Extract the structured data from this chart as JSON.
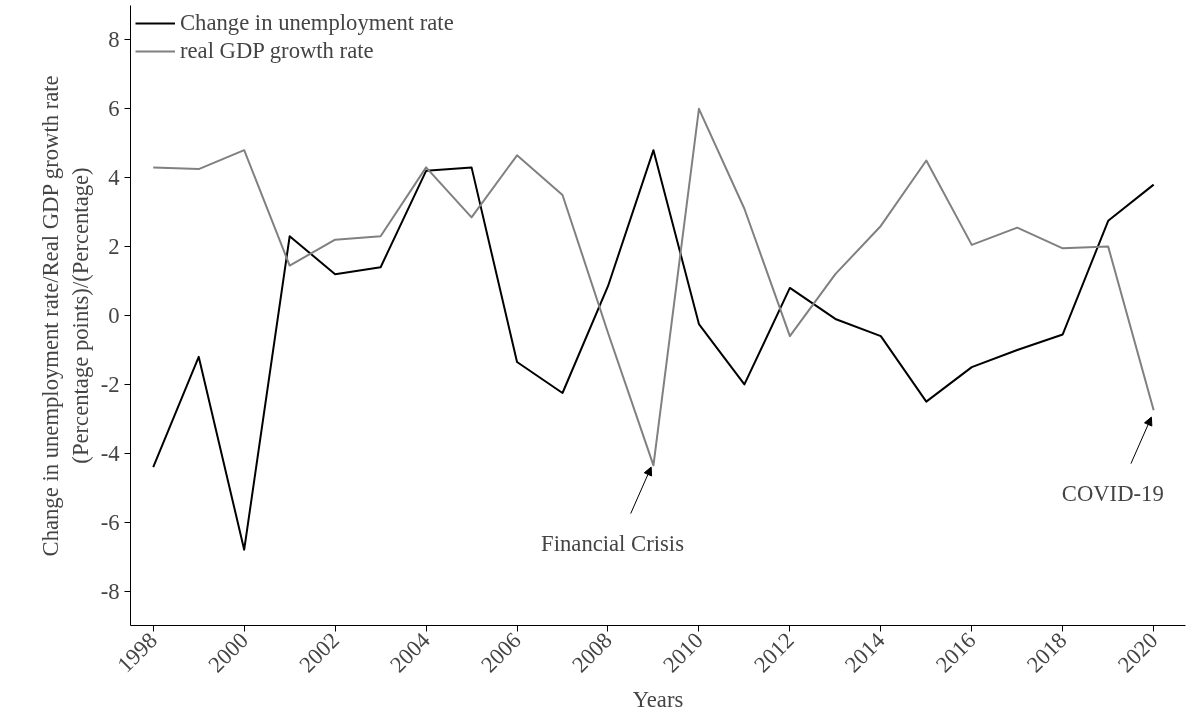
{
  "chart_data": {
    "type": "line",
    "xlabel": "Years",
    "ylabel": "Change in unemployment rate/Real GDP growth rate\n(Percentage points)/(Percentage)",
    "x": [
      1998,
      1999,
      2000,
      2001,
      2002,
      2003,
      2004,
      2005,
      2006,
      2007,
      2008,
      2009,
      2010,
      2011,
      2012,
      2013,
      2014,
      2015,
      2016,
      2017,
      2018,
      2019,
      2020
    ],
    "series": [
      {
        "name": "Change in unemployment rate",
        "color": "#000000",
        "values": [
          -4.4,
          -1.2,
          -6.8,
          2.3,
          1.2,
          1.4,
          4.2,
          4.3,
          -1.35,
          -2.25,
          0.85,
          4.8,
          -0.25,
          -2.0,
          0.8,
          -0.1,
          -0.6,
          -2.5,
          -1.5,
          -1.0,
          -0.55,
          2.75,
          3.8
        ]
      },
      {
        "name": "real GDP growth rate",
        "color": "#808080",
        "values": [
          4.3,
          4.25,
          4.8,
          1.45,
          2.2,
          2.3,
          4.3,
          2.85,
          4.65,
          3.5,
          -0.5,
          -4.35,
          6.0,
          3.1,
          -0.6,
          1.2,
          2.6,
          4.5,
          2.05,
          2.55,
          1.95,
          2.0,
          -2.75
        ]
      }
    ],
    "xlim": [
      1997.5,
      2020.7
    ],
    "ylim": [
      -9,
      9
    ],
    "xticks": [
      1998,
      2000,
      2002,
      2004,
      2006,
      2008,
      2010,
      2012,
      2014,
      2016,
      2018,
      2020
    ],
    "yticks": [
      -8,
      -6,
      -4,
      -2,
      0,
      2,
      4,
      6,
      8
    ],
    "annotations": [
      {
        "text": "Financial Crisis",
        "x": 2009,
        "y": -4.35
      },
      {
        "text": "COVID-19",
        "x": 2020,
        "y": -2.9
      }
    ],
    "grid": false,
    "legend": "top left",
    "marker": "none",
    "line_style": "solid"
  }
}
